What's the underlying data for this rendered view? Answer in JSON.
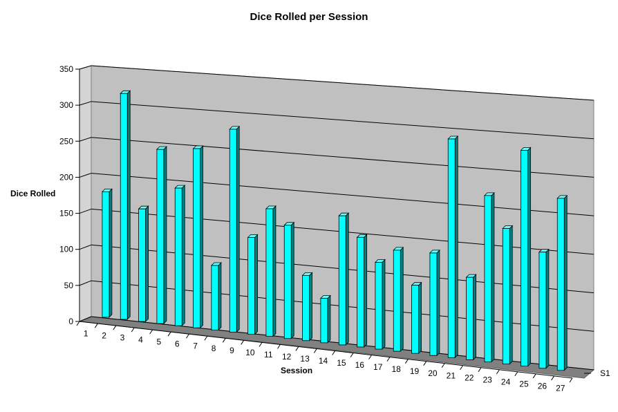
{
  "chart_data": {
    "type": "bar",
    "title": "Dice Rolled per Session",
    "xlabel": "Session",
    "ylabel": "Dice Rolled",
    "ylim": [
      0,
      350
    ],
    "yticks": [
      "0",
      "50",
      "100",
      "150",
      "200",
      "250",
      "300",
      "350"
    ],
    "categories": [
      "1",
      "2",
      "3",
      "4",
      "5",
      "6",
      "7",
      "8",
      "9",
      "10",
      "11",
      "12",
      "13",
      "14",
      "15",
      "16",
      "17",
      "18",
      "19",
      "20",
      "21",
      "22",
      "23",
      "24",
      "25",
      "26",
      "27"
    ],
    "series": [
      {
        "name": "S1",
        "values": [
          175,
          315,
          157,
          243,
          192,
          250,
          90,
          283,
          135,
          178,
          158,
          91,
          62,
          180,
          153,
          121,
          141,
          95,
          143,
          305,
          115,
          232,
          189,
          301,
          162,
          240,
          null
        ]
      }
    ],
    "grid": true,
    "legend": "none",
    "colors": {
      "bar_front": "#00ffff",
      "bar_side": "#008080",
      "bar_top": "#66ffff",
      "back_wall": "#c0c0c0",
      "side_wall": "#d4d4d4",
      "floor": "#808080",
      "gridline": "#000000"
    }
  }
}
